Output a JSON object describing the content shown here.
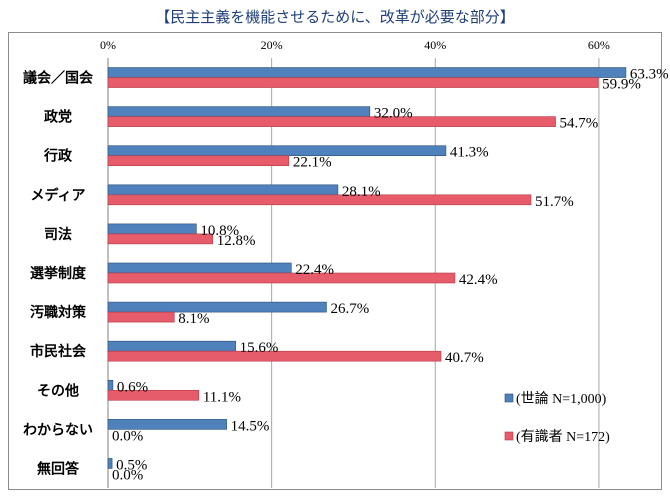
{
  "chart_data": {
    "type": "bar",
    "orientation": "horizontal",
    "title": "【民主主義を機能させるために、改革が必要な部分】",
    "categories": [
      "議会／国会",
      "政党",
      "行政",
      "メディア",
      "司法",
      "選挙制度",
      "汚職対策",
      "市民社会",
      "その他",
      "わからない",
      "無回答"
    ],
    "xlim": [
      0,
      66
    ],
    "xticks": [
      0,
      20,
      40,
      60
    ],
    "tick_labels": [
      "0%",
      "20%",
      "40%",
      "60%"
    ],
    "gridlines": true,
    "legend_position": "bottom-right",
    "series": [
      {
        "name": "(世論 N=1,000)",
        "color": "#4f81bd",
        "values": [
          63.3,
          32.0,
          41.3,
          28.1,
          10.8,
          22.4,
          26.7,
          15.6,
          0.6,
          14.5,
          0.5
        ],
        "labels": [
          "63.3%",
          "32.0%",
          "41.3%",
          "28.1%",
          "10.8%",
          "22.4%",
          "26.7%",
          "15.6%",
          "0.6%",
          "14.5%",
          "0.5%"
        ]
      },
      {
        "name": "(有識者 N=172)",
        "color": "#e65c6a",
        "values": [
          59.9,
          54.7,
          22.1,
          51.7,
          12.8,
          42.4,
          8.1,
          40.7,
          11.1,
          0.0,
          0.0
        ],
        "labels": [
          "59.9%",
          "54.7%",
          "22.1%",
          "51.7%",
          "12.8%",
          "42.4%",
          "8.1%",
          "40.7%",
          "11.1%",
          "0.0%",
          "0.0%"
        ]
      }
    ]
  }
}
